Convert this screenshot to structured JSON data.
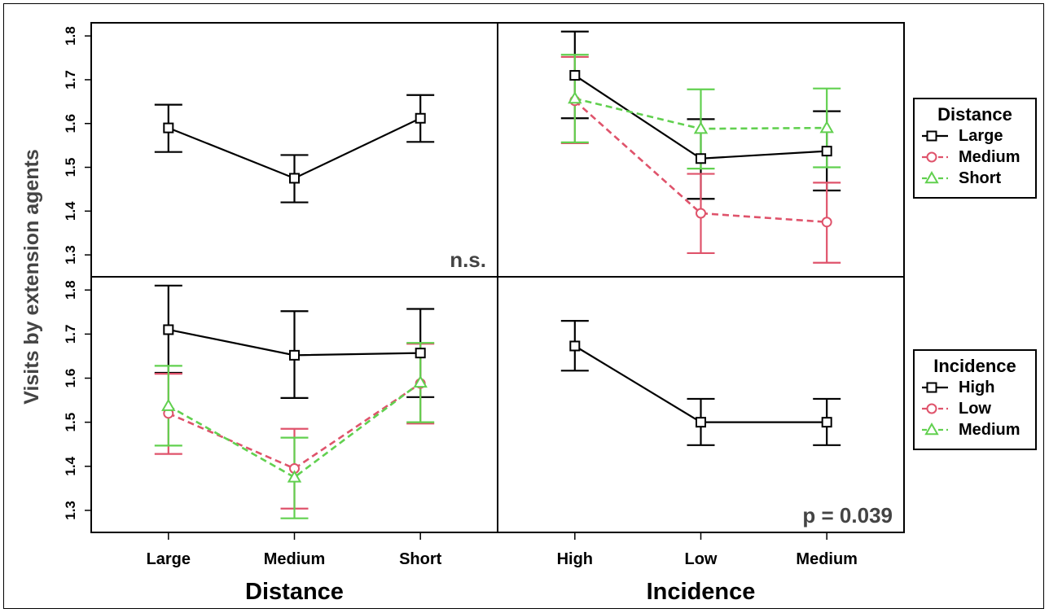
{
  "chart_data": {
    "type": "line",
    "ylabel": "Visits by extension agents",
    "ylim": [
      1.25,
      1.83
    ],
    "yticks": [
      "1.3",
      "1.4",
      "1.5",
      "1.6",
      "1.7",
      "1.8"
    ],
    "colors": {
      "black": "#000000",
      "red": "#DF536B",
      "green": "#61D04F",
      "gray": "#444444"
    },
    "panels": [
      {
        "id": "distance-main",
        "xfactor": "distance",
        "annotation": "n.s.",
        "series": [
          {
            "name": "",
            "color": "black",
            "marker": "square",
            "dashed": false,
            "values": [
              1.59,
              1.475,
              1.612
            ],
            "lower": [
              1.535,
              1.42,
              1.558
            ],
            "upper": [
              1.643,
              1.528,
              1.665
            ]
          }
        ]
      },
      {
        "id": "incidence-by-distance",
        "xfactor": "incidence",
        "annotation": "",
        "series": [
          {
            "name": "Large",
            "color": "black",
            "marker": "square",
            "dashed": false,
            "values": [
              1.71,
              1.52,
              1.537
            ],
            "lower": [
              1.612,
              1.428,
              1.447
            ],
            "upper": [
              1.81,
              1.61,
              1.628
            ]
          },
          {
            "name": "Medium",
            "color": "red",
            "marker": "circle",
            "dashed": true,
            "values": [
              1.652,
              1.395,
              1.375
            ],
            "lower": [
              1.555,
              1.304,
              1.282
            ],
            "upper": [
              1.752,
              1.485,
              1.465
            ]
          },
          {
            "name": "Short",
            "color": "green",
            "marker": "triangle",
            "dashed": true,
            "values": [
              1.657,
              1.588,
              1.59
            ],
            "lower": [
              1.557,
              1.497,
              1.5
            ],
            "upper": [
              1.757,
              1.678,
              1.68
            ]
          }
        ]
      },
      {
        "id": "distance-by-incidence",
        "xfactor": "distance",
        "annotation": "",
        "series": [
          {
            "name": "High",
            "color": "black",
            "marker": "square",
            "dashed": false,
            "values": [
              1.71,
              1.652,
              1.657
            ],
            "lower": [
              1.612,
              1.555,
              1.557
            ],
            "upper": [
              1.81,
              1.752,
              1.757
            ]
          },
          {
            "name": "Low",
            "color": "red",
            "marker": "circle",
            "dashed": true,
            "values": [
              1.52,
              1.395,
              1.588
            ],
            "lower": [
              1.428,
              1.304,
              1.497
            ],
            "upper": [
              1.61,
              1.485,
              1.678
            ]
          },
          {
            "name": "Medium",
            "color": "green",
            "marker": "triangle",
            "dashed": true,
            "values": [
              1.537,
              1.375,
              1.59
            ],
            "lower": [
              1.447,
              1.282,
              1.5
            ],
            "upper": [
              1.628,
              1.465,
              1.68
            ]
          }
        ]
      },
      {
        "id": "incidence-main",
        "xfactor": "incidence",
        "annotation": "p = 0.039",
        "series": [
          {
            "name": "",
            "color": "black",
            "marker": "square",
            "dashed": false,
            "values": [
              1.673,
              1.5,
              1.5
            ],
            "lower": [
              1.617,
              1.448,
              1.448
            ],
            "upper": [
              1.73,
              1.553,
              1.553
            ]
          }
        ]
      }
    ],
    "x_axes": [
      {
        "factor": "distance",
        "label": "Distance",
        "categories": [
          "Large",
          "Medium",
          "Short"
        ]
      },
      {
        "factor": "incidence",
        "label": "Incidence",
        "categories": [
          "High",
          "Low",
          "Medium"
        ]
      }
    ],
    "legends": [
      {
        "title": "Distance",
        "entries": [
          {
            "label": "Large",
            "color": "black",
            "marker": "square",
            "dashed": false
          },
          {
            "label": "Medium",
            "color": "red",
            "marker": "circle",
            "dashed": true
          },
          {
            "label": "Short",
            "color": "green",
            "marker": "triangle",
            "dashed": true
          }
        ]
      },
      {
        "title": "Incidence",
        "entries": [
          {
            "label": "High",
            "color": "black",
            "marker": "square",
            "dashed": false
          },
          {
            "label": "Low",
            "color": "red",
            "marker": "circle",
            "dashed": true
          },
          {
            "label": "Medium",
            "color": "green",
            "marker": "triangle",
            "dashed": true
          }
        ]
      }
    ]
  }
}
